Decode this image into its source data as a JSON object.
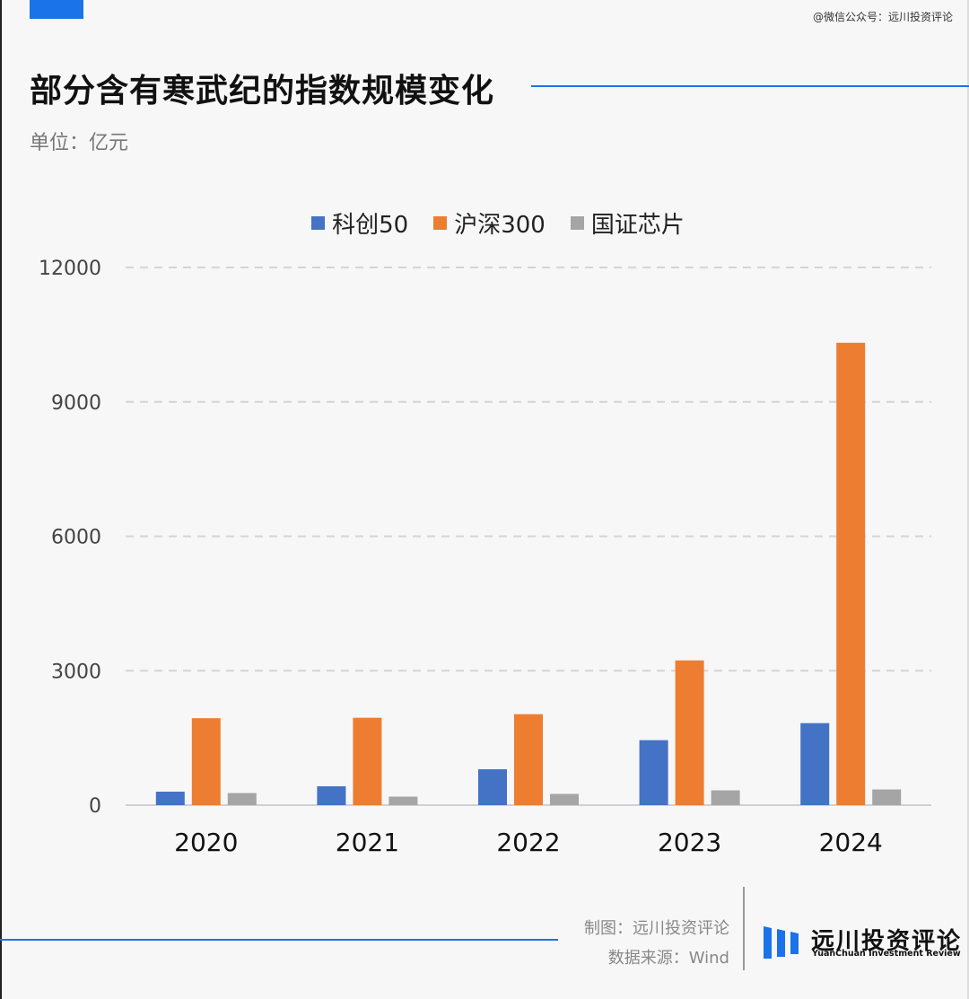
{
  "watermark": "@微信公众号：远川投资评论",
  "title": "部分含有寒武纪的指数规模变化",
  "unit": "单位：亿元",
  "footer": {
    "credit_line1": "制图：远川投资评论",
    "credit_line2": "数据来源：Wind",
    "logo_cn": "远川投资评论",
    "logo_en": "YuanChuan Investment Review"
  },
  "colors": {
    "accent": "#1a73e8",
    "series": [
      "#4472c4",
      "#ed7d31",
      "#a5a5a5"
    ]
  },
  "chart_data": {
    "type": "bar",
    "title": "部分含有寒武纪的指数规模变化",
    "ylabel": "单位：亿元",
    "categories": [
      "2020",
      "2021",
      "2022",
      "2023",
      "2024"
    ],
    "series": [
      {
        "name": "科创50",
        "values": [
          300,
          420,
          800,
          1450,
          1830
        ]
      },
      {
        "name": "沪深300",
        "values": [
          1940,
          1950,
          2030,
          3230,
          10320
        ]
      },
      {
        "name": "国证芯片",
        "values": [
          270,
          190,
          250,
          330,
          350
        ]
      }
    ],
    "ylim": [
      0,
      12000
    ],
    "yticks": [
      0,
      3000,
      6000,
      9000,
      12000
    ],
    "grid": true,
    "legend": "top-center"
  }
}
